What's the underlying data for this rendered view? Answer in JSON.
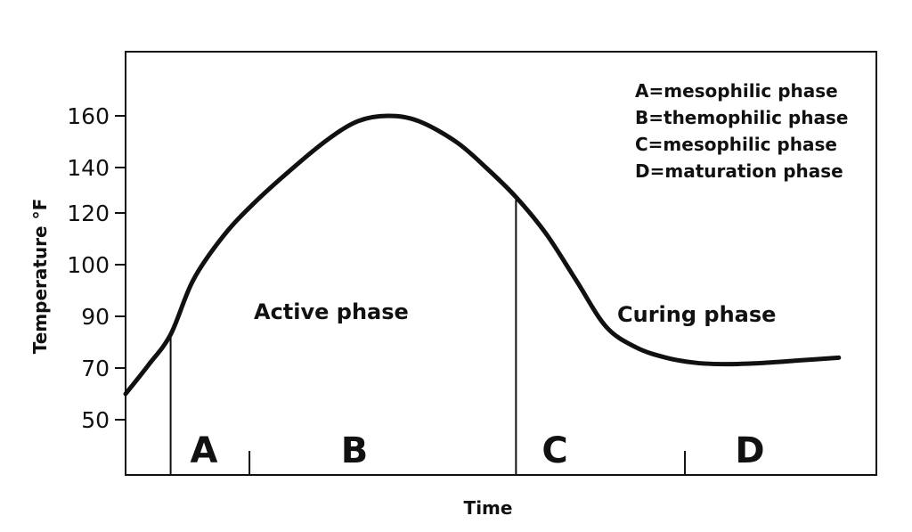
{
  "chart_data": {
    "type": "line",
    "title": "",
    "xlabel": "Time",
    "ylabel": "Temperature °F",
    "y_ticks": [
      "160",
      "140",
      "120",
      "100",
      "90",
      "70",
      "50"
    ],
    "legend": [
      "A=mesophilic phase",
      "B=themophilic phase",
      "C=mesophilic phase",
      "D=maturation phase"
    ],
    "phase_labels": [
      "Active phase",
      "Curing phase"
    ],
    "stages": [
      "A",
      "B",
      "C",
      "D"
    ],
    "series": [
      {
        "values": [
          [
            0.0,
            60
          ],
          [
            0.03,
            71
          ],
          [
            0.06,
            83
          ],
          [
            0.09,
            97
          ],
          [
            0.13,
            111
          ],
          [
            0.17,
            124
          ],
          [
            0.22,
            139
          ],
          [
            0.27,
            151
          ],
          [
            0.31,
            158
          ],
          [
            0.35,
            160
          ],
          [
            0.39,
            158
          ],
          [
            0.44,
            150
          ],
          [
            0.48,
            140
          ],
          [
            0.52,
            127
          ],
          [
            0.56,
            112
          ],
          [
            0.6,
            97
          ],
          [
            0.64,
            86
          ],
          [
            0.68,
            78
          ],
          [
            0.72,
            74
          ],
          [
            0.76,
            72
          ],
          [
            0.8,
            71.5
          ],
          [
            0.85,
            72
          ],
          [
            0.9,
            73
          ],
          [
            0.95,
            74
          ]
        ]
      }
    ],
    "stage_dividers": [
      0.06,
      0.165,
      0.52,
      0.745
    ],
    "grid": false
  }
}
